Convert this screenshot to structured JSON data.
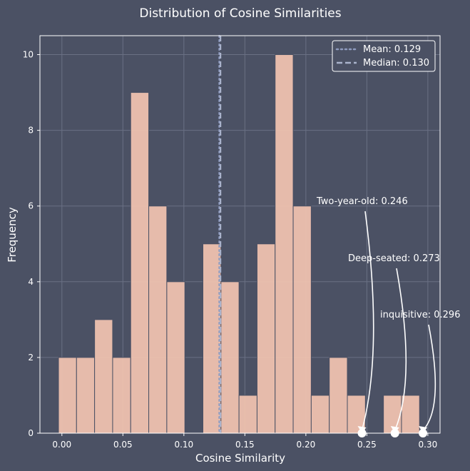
{
  "chart_data": {
    "type": "bar",
    "title": "Distribution of Cosine Similarities",
    "xlabel": "Cosine Similarity",
    "ylabel": "Frequency",
    "xlim": [
      -0.018,
      0.31
    ],
    "ylim": [
      0,
      10.5
    ],
    "xticks": [
      0.0,
      0.05,
      0.1,
      0.15,
      0.2,
      0.25,
      0.3
    ],
    "xtick_labels": [
      "0.00",
      "0.05",
      "0.10",
      "0.15",
      "0.20",
      "0.25",
      "0.30"
    ],
    "yticks": [
      0,
      2,
      4,
      6,
      8,
      10
    ],
    "ytick_labels": [
      "0",
      "2",
      "4",
      "6",
      "8",
      "10"
    ],
    "grid": true,
    "bin_width": 0.0148,
    "bins": [
      {
        "x0": -0.0028,
        "count": 2
      },
      {
        "x0": 0.012,
        "count": 2
      },
      {
        "x0": 0.0268,
        "count": 3
      },
      {
        "x0": 0.0416,
        "count": 2
      },
      {
        "x0": 0.0564,
        "count": 9
      },
      {
        "x0": 0.0712,
        "count": 6
      },
      {
        "x0": 0.086,
        "count": 4
      },
      {
        "x0": 0.1008,
        "count": 0
      },
      {
        "x0": 0.1156,
        "count": 5
      },
      {
        "x0": 0.1304,
        "count": 4
      },
      {
        "x0": 0.1452,
        "count": 1
      },
      {
        "x0": 0.16,
        "count": 5
      },
      {
        "x0": 0.1748,
        "count": 10
      },
      {
        "x0": 0.1896,
        "count": 6
      },
      {
        "x0": 0.2044,
        "count": 1
      },
      {
        "x0": 0.2192,
        "count": 2
      },
      {
        "x0": 0.234,
        "count": 1
      },
      {
        "x0": 0.2488,
        "count": 0
      },
      {
        "x0": 0.2636,
        "count": 1
      },
      {
        "x0": 0.2784,
        "count": 1
      }
    ],
    "bar_color": "#f3c4b1",
    "mean": {
      "value": 0.129,
      "label": "Mean: 0.129",
      "style": "dotted",
      "color": "#8f9bbf"
    },
    "median": {
      "value": 0.13,
      "label": "Median: 0.130",
      "style": "dashed",
      "color": "#aab3cc"
    },
    "legend_position": "top-right",
    "annotations": [
      {
        "text": "Two-year-old: 0.246",
        "x": 0.246,
        "y": 0
      },
      {
        "text": "Deep-seated: 0.273",
        "x": 0.273,
        "y": 0
      },
      {
        "text": "inquisitive: 0.296",
        "x": 0.296,
        "y": 0
      }
    ]
  }
}
